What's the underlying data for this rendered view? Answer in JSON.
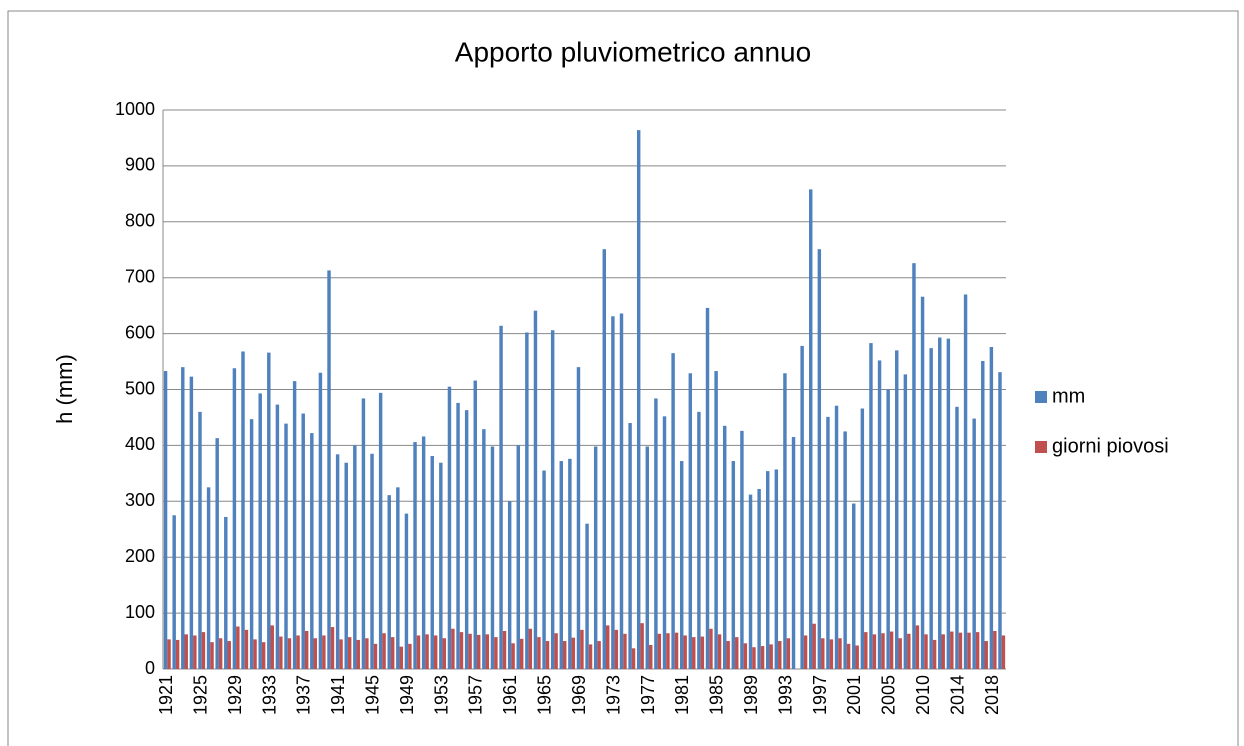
{
  "chart_data": {
    "type": "bar",
    "title": "Apporto pluviometrico annuo",
    "y_label": "h (mm)",
    "categories": [
      "1921",
      null,
      null,
      null,
      "1925",
      null,
      null,
      null,
      "1929",
      null,
      null,
      null,
      "1933",
      null,
      null,
      null,
      "1937",
      null,
      null,
      null,
      "1941",
      null,
      null,
      null,
      "1945",
      null,
      null,
      null,
      "1949",
      null,
      null,
      null,
      "1953",
      null,
      null,
      null,
      "1957",
      null,
      null,
      null,
      "1961",
      null,
      null,
      null,
      "1965",
      null,
      null,
      null,
      "1969",
      null,
      null,
      null,
      "1973",
      null,
      null,
      null,
      "1977",
      null,
      null,
      null,
      "1981",
      null,
      null,
      null,
      "1985",
      null,
      null,
      null,
      "1989",
      null,
      null,
      null,
      "1993",
      null,
      null,
      null,
      "1997",
      null,
      null,
      null,
      "2001",
      null,
      null,
      null,
      "2005",
      null,
      null,
      null,
      "2010",
      null,
      null,
      null,
      "2014",
      null,
      null,
      null,
      "2018",
      null
    ],
    "series": [
      {
        "name": "mm",
        "color": "#4f81bd",
        "values": [
          533,
          275,
          540,
          523,
          460,
          325,
          413,
          272,
          538,
          568,
          447,
          493,
          566,
          473,
          439,
          515,
          457,
          422,
          530,
          713,
          384,
          369,
          400,
          484,
          385,
          494,
          311,
          325,
          278,
          406,
          416,
          381,
          369,
          505,
          476,
          463,
          516,
          429,
          398,
          614,
          300,
          400,
          602,
          641,
          355,
          606,
          372,
          376,
          540,
          260,
          398,
          751,
          631,
          636,
          440,
          964,
          398,
          484,
          452,
          565,
          372,
          529,
          460,
          646,
          533,
          435,
          372,
          426,
          312,
          322,
          354,
          357,
          529,
          415,
          578,
          858,
          751,
          451,
          471,
          425,
          296,
          466,
          583,
          552,
          500,
          570,
          527,
          726,
          666,
          574,
          593,
          591,
          469,
          670,
          448,
          551,
          576,
          531
        ]
      },
      {
        "name": "giorni piovosi",
        "color": "#c0504d",
        "values": [
          53,
          52,
          62,
          60,
          66,
          48,
          55,
          50,
          76,
          70,
          53,
          48,
          78,
          58,
          55,
          60,
          68,
          55,
          60,
          75,
          53,
          57,
          52,
          55,
          45,
          64,
          57,
          40,
          45,
          60,
          62,
          60,
          55,
          72,
          66,
          63,
          61,
          62,
          57,
          68,
          46,
          54,
          72,
          57,
          50,
          64,
          50,
          56,
          70,
          44,
          50,
          78,
          70,
          63,
          37,
          82,
          43,
          63,
          64,
          65,
          60,
          57,
          58,
          72,
          62,
          50,
          57,
          46,
          39,
          41,
          44,
          50,
          55,
          null,
          60,
          81,
          55,
          53,
          55,
          45,
          42,
          66,
          62,
          64,
          67,
          55,
          63,
          78,
          62,
          52,
          62,
          67,
          65,
          65,
          66,
          50,
          68,
          60
        ]
      }
    ],
    "ylim": [
      0,
      1000
    ],
    "yticks": [
      0,
      100,
      200,
      300,
      400,
      500,
      600,
      700,
      800,
      900,
      1000
    ],
    "grid": true,
    "legend": "right"
  }
}
